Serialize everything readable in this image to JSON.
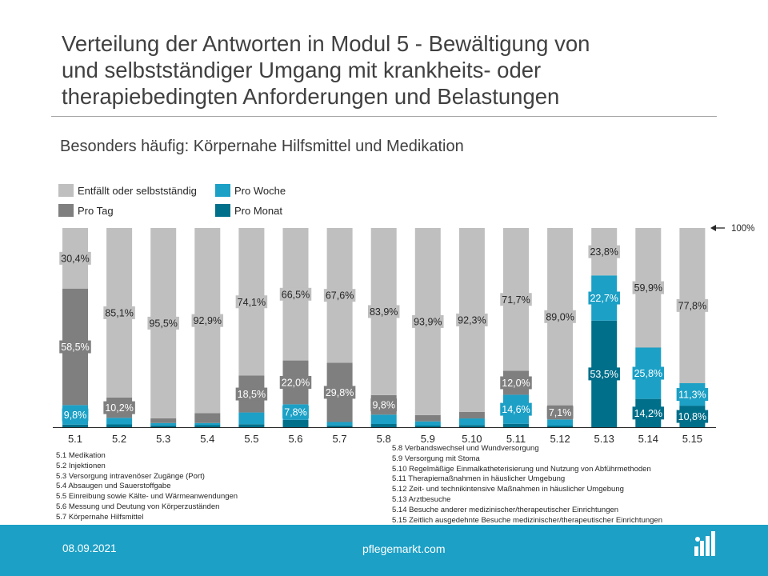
{
  "title_lines": [
    "Verteilung der Antworten in Modul 5 - Bewältigung von",
    "und selbstständiger Umgang mit krankheits- oder",
    "therapiebedingten Anforderungen und Belastungen"
  ],
  "subtitle": "Besonders häufig: Körpernahe Hilfsmittel und Medikation",
  "hundred_label": "100%",
  "notes_left": [
    "5.1 Medikation",
    "5.2 Injektionen",
    "5.3 Versorgung intravenöser Zugänge (Port)",
    "5.4 Absaugen und Sauerstoffgabe",
    "5.5 Einreibung sowie Kälte- und Wärmeanwendungen",
    "5.6 Messung und Deutung von Körperzuständen",
    "5.7 Körpernahe Hilfsmittel"
  ],
  "notes_right": [
    "5.8 Verbandswechsel und Wundversorgung",
    "5.9 Versorgung mit Stoma",
    "5.10 Regelmäßige Einmalkatheterisierung und Nutzung von Abführmethoden",
    "5.11 Therapiemaßnahmen in häuslicher Umgebung",
    "5.12 Zeit- und technikintensive Maßnahmen in häuslicher Umgebung",
    "5.13 Arztbesuche",
    "5.14 Besuche anderer medizinischer/therapeutischer Einrichtungen",
    "5.15 Zeitlich ausgedehnte Besuche medizinischer/therapeutischer Einrichtungen"
  ],
  "footer": {
    "date": "08.09.2021",
    "brand": "pflegemarkt.com"
  },
  "chart_data": {
    "type": "bar",
    "stacked": true,
    "percent": true,
    "ylim": [
      0,
      100
    ],
    "grid": false,
    "legend_position": "top-left",
    "categories": [
      "5.1",
      "5.2",
      "5.3",
      "5.4",
      "5.5",
      "5.6",
      "5.7",
      "5.8",
      "5.9",
      "5.10",
      "5.11",
      "5.12",
      "5.13",
      "5.14",
      "5.15"
    ],
    "series": [
      {
        "name": "Pro Monat",
        "color": "#006f8a",
        "values": [
          1.3,
          1.4,
          0.9,
          1.0,
          1.5,
          3.7,
          0.9,
          1.6,
          0.8,
          1.1,
          1.7,
          0.8,
          53.5,
          14.2,
          10.8
        ],
        "labels": [
          null,
          null,
          null,
          null,
          null,
          null,
          null,
          null,
          null,
          null,
          null,
          null,
          "53,5%",
          "14,2%",
          "10,8%"
        ]
      },
      {
        "name": "Pro Woche",
        "color": "#1ca0c6",
        "values": [
          9.8,
          3.3,
          1.2,
          1.1,
          5.9,
          7.8,
          1.7,
          4.7,
          2.1,
          3.3,
          14.6,
          3.1,
          22.7,
          25.8,
          11.3
        ],
        "labels": [
          "9,8%",
          null,
          null,
          null,
          null,
          "7,8%",
          null,
          null,
          null,
          null,
          "14,6%",
          null,
          "22,7%",
          "25,8%",
          "11,3%"
        ]
      },
      {
        "name": "Pro Tag",
        "color": "#7f7f7f",
        "values": [
          58.5,
          10.2,
          2.4,
          5.0,
          18.5,
          22.0,
          29.8,
          9.8,
          3.2,
          3.3,
          12.0,
          7.1,
          0.0,
          0.1,
          0.1
        ],
        "labels": [
          "58,5%",
          "10,2%",
          null,
          null,
          "18,5%",
          "22,0%",
          "29,8%",
          "9,8%",
          null,
          null,
          "12,0%",
          "7,1%",
          null,
          null,
          null
        ]
      },
      {
        "name": "Entfällt oder selbstständig",
        "color": "#bfbfbf",
        "values": [
          30.4,
          85.1,
          95.5,
          92.9,
          74.1,
          66.5,
          67.6,
          83.9,
          93.9,
          92.3,
          71.7,
          89.0,
          23.8,
          59.9,
          77.8
        ],
        "labels": [
          "30,4%",
          "85,1%",
          "95,5%",
          "92,9%",
          "74,1%",
          "66,5%",
          "67,6%",
          "83,9%",
          "93,9%",
          "92,3%",
          "71,7%",
          "89,0%",
          "23,8%",
          "59,9%",
          "77,8%"
        ]
      }
    ],
    "legend_order": [
      "Entfällt oder selbstständig",
      "Pro Woche",
      "Pro Tag",
      "Pro Monat"
    ]
  }
}
